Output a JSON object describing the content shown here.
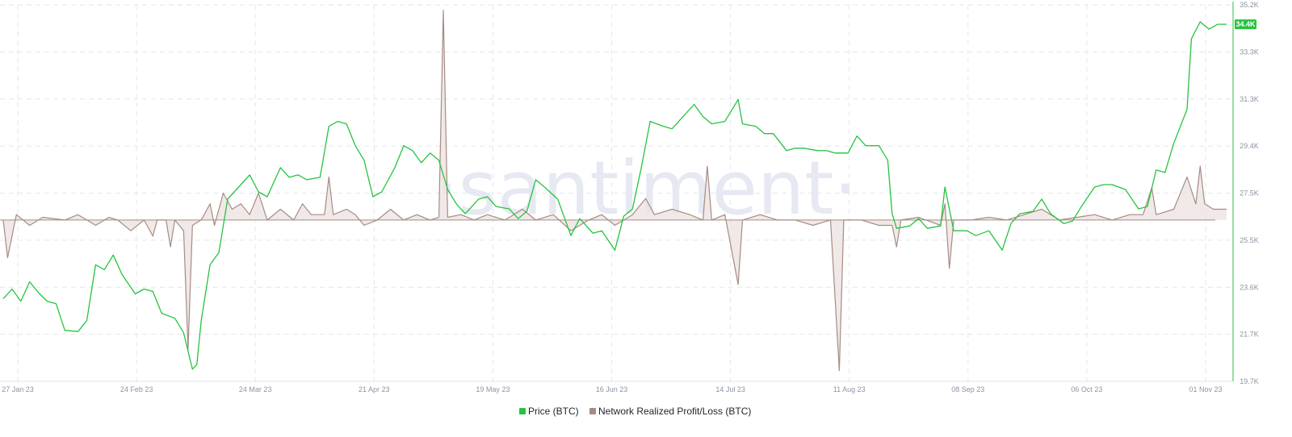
{
  "watermark": "·santiment·",
  "chart_data": {
    "type": "line",
    "x_ticks": [
      "27 Jan 23",
      "24 Feb 23",
      "24 Mar 23",
      "21 Apr 23",
      "19 May 23",
      "16 Jun 23",
      "14 Jul 23",
      "11 Aug 23",
      "08 Sep 23",
      "06 Oct 23",
      "01 Nov 23"
    ],
    "y_ticks": [
      "35.2K",
      "33.3K",
      "31.3K",
      "29.4K",
      "27.5K",
      "25.5K",
      "23.6K",
      "21.7K",
      "19.7K"
    ],
    "ylim": [
      19700,
      35200
    ],
    "xlim": [
      "2023-01-27",
      "2023-11-01"
    ],
    "grid": true,
    "legend_position": "bottom-center",
    "current_price_badge": "34.4K",
    "colors": {
      "price": "#26c340",
      "profit_loss": "#a58c84",
      "profit_loss_fill": "#ede4e1",
      "grid": "#e3e6ec"
    },
    "series": [
      {
        "name": "Price (BTC)",
        "color": "#26c340",
        "axis": "right",
        "points": [
          [
            "2023-01-27",
            23100
          ],
          [
            "2023-01-29",
            23500
          ],
          [
            "2023-01-31",
            23000
          ],
          [
            "2023-02-02",
            23800
          ],
          [
            "2023-02-04",
            23350
          ],
          [
            "2023-02-06",
            23000
          ],
          [
            "2023-02-08",
            22900
          ],
          [
            "2023-02-10",
            21800
          ],
          [
            "2023-02-13",
            21750
          ],
          [
            "2023-02-15",
            22200
          ],
          [
            "2023-02-17",
            24500
          ],
          [
            "2023-02-19",
            24300
          ],
          [
            "2023-02-21",
            24900
          ],
          [
            "2023-02-23",
            24100
          ],
          [
            "2023-02-26",
            23300
          ],
          [
            "2023-02-28",
            23500
          ],
          [
            "2023-03-02",
            23400
          ],
          [
            "2023-03-04",
            22500
          ],
          [
            "2023-03-07",
            22300
          ],
          [
            "2023-03-09",
            21700
          ],
          [
            "2023-03-11",
            20200
          ],
          [
            "2023-03-12",
            20400
          ],
          [
            "2023-03-13",
            22200
          ],
          [
            "2023-03-15",
            24500
          ],
          [
            "2023-03-17",
            25000
          ],
          [
            "2023-03-19",
            27200
          ],
          [
            "2023-03-22",
            27800
          ],
          [
            "2023-03-24",
            28200
          ],
          [
            "2023-03-26",
            27500
          ],
          [
            "2023-03-28",
            27300
          ],
          [
            "2023-03-31",
            28500
          ],
          [
            "2023-04-02",
            28100
          ],
          [
            "2023-04-04",
            28200
          ],
          [
            "2023-04-06",
            28000
          ],
          [
            "2023-04-09",
            28100
          ],
          [
            "2023-04-11",
            30200
          ],
          [
            "2023-04-13",
            30400
          ],
          [
            "2023-04-15",
            30300
          ],
          [
            "2023-04-17",
            29400
          ],
          [
            "2023-04-19",
            28800
          ],
          [
            "2023-04-21",
            27300
          ],
          [
            "2023-04-23",
            27500
          ],
          [
            "2023-04-26",
            28500
          ],
          [
            "2023-04-28",
            29400
          ],
          [
            "2023-04-30",
            29200
          ],
          [
            "2023-05-02",
            28700
          ],
          [
            "2023-05-04",
            29100
          ],
          [
            "2023-05-06",
            28800
          ],
          [
            "2023-05-08",
            27600
          ],
          [
            "2023-05-10",
            27000
          ],
          [
            "2023-05-12",
            26600
          ],
          [
            "2023-05-15",
            27200
          ],
          [
            "2023-05-17",
            27300
          ],
          [
            "2023-05-19",
            26900
          ],
          [
            "2023-05-22",
            26800
          ],
          [
            "2023-05-24",
            26400
          ],
          [
            "2023-05-26",
            26700
          ],
          [
            "2023-05-28",
            28000
          ],
          [
            "2023-05-30",
            27700
          ],
          [
            "2023-06-02",
            27200
          ],
          [
            "2023-06-05",
            25700
          ],
          [
            "2023-06-07",
            26400
          ],
          [
            "2023-06-10",
            25800
          ],
          [
            "2023-06-12",
            25900
          ],
          [
            "2023-06-15",
            25100
          ],
          [
            "2023-06-17",
            26500
          ],
          [
            "2023-06-19",
            26800
          ],
          [
            "2023-06-21",
            28500
          ],
          [
            "2023-06-23",
            30400
          ],
          [
            "2023-06-26",
            30200
          ],
          [
            "2023-06-28",
            30100
          ],
          [
            "2023-06-30",
            30500
          ],
          [
            "2023-07-03",
            31100
          ],
          [
            "2023-07-05",
            30600
          ],
          [
            "2023-07-07",
            30300
          ],
          [
            "2023-07-10",
            30400
          ],
          [
            "2023-07-13",
            31300
          ],
          [
            "2023-07-14",
            30300
          ],
          [
            "2023-07-17",
            30200
          ],
          [
            "2023-07-19",
            29900
          ],
          [
            "2023-07-21",
            29900
          ],
          [
            "2023-07-24",
            29200
          ],
          [
            "2023-07-26",
            29300
          ],
          [
            "2023-07-28",
            29300
          ],
          [
            "2023-07-31",
            29200
          ],
          [
            "2023-08-02",
            29200
          ],
          [
            "2023-08-04",
            29100
          ],
          [
            "2023-08-07",
            29100
          ],
          [
            "2023-08-09",
            29800
          ],
          [
            "2023-08-11",
            29400
          ],
          [
            "2023-08-14",
            29400
          ],
          [
            "2023-08-16",
            28800
          ],
          [
            "2023-08-17",
            26600
          ],
          [
            "2023-08-18",
            26000
          ],
          [
            "2023-08-21",
            26100
          ],
          [
            "2023-08-23",
            26400
          ],
          [
            "2023-08-25",
            26000
          ],
          [
            "2023-08-28",
            26100
          ],
          [
            "2023-08-29",
            27700
          ],
          [
            "2023-08-31",
            25900
          ],
          [
            "2023-09-03",
            25900
          ],
          [
            "2023-09-05",
            25700
          ],
          [
            "2023-09-08",
            25900
          ],
          [
            "2023-09-11",
            25100
          ],
          [
            "2023-09-13",
            26200
          ],
          [
            "2023-09-15",
            26600
          ],
          [
            "2023-09-18",
            26700
          ],
          [
            "2023-09-20",
            27200
          ],
          [
            "2023-09-22",
            26600
          ],
          [
            "2023-09-25",
            26200
          ],
          [
            "2023-09-27",
            26300
          ],
          [
            "2023-09-29",
            26900
          ],
          [
            "2023-10-02",
            27700
          ],
          [
            "2023-10-04",
            27800
          ],
          [
            "2023-10-06",
            27800
          ],
          [
            "2023-10-09",
            27600
          ],
          [
            "2023-10-12",
            26800
          ],
          [
            "2023-10-14",
            26900
          ],
          [
            "2023-10-16",
            28400
          ],
          [
            "2023-10-18",
            28300
          ],
          [
            "2023-10-20",
            29500
          ],
          [
            "2023-10-23",
            30900
          ],
          [
            "2023-10-24",
            33800
          ],
          [
            "2023-10-26",
            34500
          ],
          [
            "2023-10-28",
            34200
          ],
          [
            "2023-10-30",
            34400
          ],
          [
            "2023-11-01",
            34400
          ]
        ]
      },
      {
        "name": "Network Realized Profit/Loss (BTC)",
        "color": "#a58c84",
        "axis": "hidden",
        "baseline": 0,
        "ylim": [
          -30,
          40
        ],
        "points": [
          [
            "2023-01-27",
            0
          ],
          [
            "2023-01-28",
            -7
          ],
          [
            "2023-01-30",
            1
          ],
          [
            "2023-02-02",
            -1
          ],
          [
            "2023-02-05",
            0.5
          ],
          [
            "2023-02-10",
            0
          ],
          [
            "2023-02-13",
            1
          ],
          [
            "2023-02-17",
            -1
          ],
          [
            "2023-02-20",
            0.5
          ],
          [
            "2023-02-22",
            0
          ],
          [
            "2023-02-25",
            -2
          ],
          [
            "2023-02-28",
            0
          ],
          [
            "2023-03-02",
            -3
          ],
          [
            "2023-03-03",
            0
          ],
          [
            "2023-03-05",
            0
          ],
          [
            "2023-03-06",
            -5
          ],
          [
            "2023-03-07",
            0
          ],
          [
            "2023-03-09",
            -2
          ],
          [
            "2023-03-10",
            -24
          ],
          [
            "2023-03-11",
            -1
          ],
          [
            "2023-03-13",
            0
          ],
          [
            "2023-03-15",
            3
          ],
          [
            "2023-03-16",
            -1
          ],
          [
            "2023-03-18",
            5
          ],
          [
            "2023-03-20",
            2
          ],
          [
            "2023-03-22",
            3
          ],
          [
            "2023-03-24",
            1
          ],
          [
            "2023-03-26",
            5
          ],
          [
            "2023-03-28",
            0
          ],
          [
            "2023-03-31",
            2
          ],
          [
            "2023-04-03",
            0
          ],
          [
            "2023-04-05",
            3
          ],
          [
            "2023-04-07",
            1
          ],
          [
            "2023-04-10",
            1
          ],
          [
            "2023-04-11",
            8
          ],
          [
            "2023-04-12",
            1
          ],
          [
            "2023-04-15",
            2
          ],
          [
            "2023-04-17",
            1
          ],
          [
            "2023-04-19",
            -1
          ],
          [
            "2023-04-22",
            0
          ],
          [
            "2023-04-25",
            2
          ],
          [
            "2023-04-28",
            0
          ],
          [
            "2023-05-01",
            1
          ],
          [
            "2023-05-04",
            0
          ],
          [
            "2023-05-06",
            0.5
          ],
          [
            "2023-05-07",
            39
          ],
          [
            "2023-05-08",
            0.5
          ],
          [
            "2023-05-11",
            1
          ],
          [
            "2023-05-14",
            0
          ],
          [
            "2023-05-17",
            1
          ],
          [
            "2023-05-21",
            0
          ],
          [
            "2023-05-25",
            2
          ],
          [
            "2023-05-28",
            0
          ],
          [
            "2023-06-01",
            1
          ],
          [
            "2023-06-05",
            -2
          ],
          [
            "2023-06-09",
            0
          ],
          [
            "2023-06-12",
            1
          ],
          [
            "2023-06-15",
            -1
          ],
          [
            "2023-06-19",
            1
          ],
          [
            "2023-06-22",
            4
          ],
          [
            "2023-06-24",
            1
          ],
          [
            "2023-06-28",
            2
          ],
          [
            "2023-07-02",
            1
          ],
          [
            "2023-07-05",
            0
          ],
          [
            "2023-07-06",
            10
          ],
          [
            "2023-07-07",
            0
          ],
          [
            "2023-07-10",
            1
          ],
          [
            "2023-07-13",
            -12
          ],
          [
            "2023-07-14",
            0
          ],
          [
            "2023-07-18",
            1
          ],
          [
            "2023-07-22",
            0
          ],
          [
            "2023-07-26",
            0
          ],
          [
            "2023-07-30",
            -1
          ],
          [
            "2023-08-03",
            0
          ],
          [
            "2023-08-05",
            -28
          ],
          [
            "2023-08-06",
            0
          ],
          [
            "2023-08-10",
            0
          ],
          [
            "2023-08-14",
            -1
          ],
          [
            "2023-08-17",
            -1
          ],
          [
            "2023-08-18",
            -5
          ],
          [
            "2023-08-19",
            0
          ],
          [
            "2023-08-23",
            0.5
          ],
          [
            "2023-08-28",
            -1
          ],
          [
            "2023-08-29",
            3
          ],
          [
            "2023-08-30",
            -9
          ],
          [
            "2023-08-31",
            0
          ],
          [
            "2023-09-04",
            0
          ],
          [
            "2023-09-08",
            0.5
          ],
          [
            "2023-09-12",
            0
          ],
          [
            "2023-09-16",
            1
          ],
          [
            "2023-09-20",
            2
          ],
          [
            "2023-09-24",
            0
          ],
          [
            "2023-09-28",
            0.5
          ],
          [
            "2023-10-02",
            1
          ],
          [
            "2023-10-06",
            0
          ],
          [
            "2023-10-10",
            1
          ],
          [
            "2023-10-13",
            1
          ],
          [
            "2023-10-15",
            6
          ],
          [
            "2023-10-16",
            1
          ],
          [
            "2023-10-20",
            2
          ],
          [
            "2023-10-23",
            8
          ],
          [
            "2023-10-25",
            3
          ],
          [
            "2023-10-26",
            10
          ],
          [
            "2023-10-27",
            3
          ],
          [
            "2023-10-29",
            2
          ],
          [
            "2023-11-01",
            2
          ]
        ]
      }
    ]
  }
}
